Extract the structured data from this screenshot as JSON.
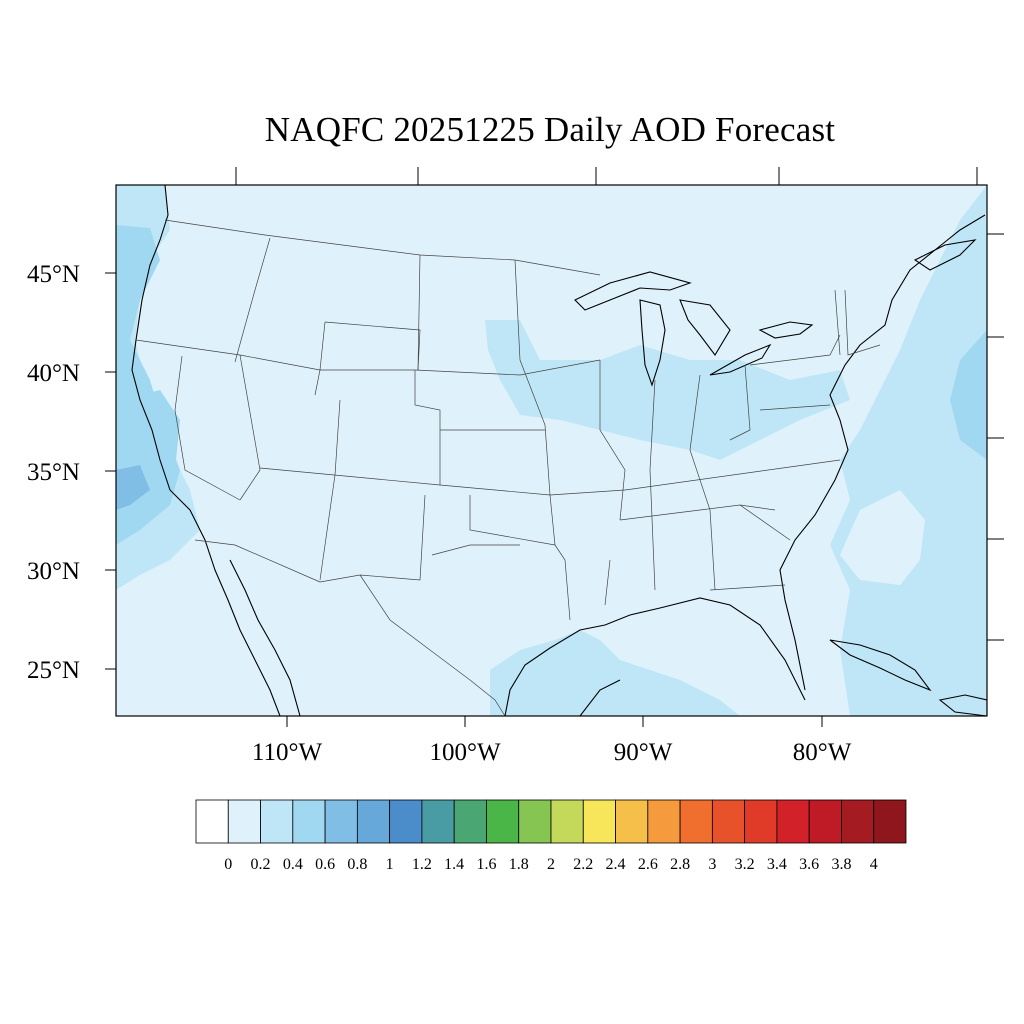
{
  "title": "NAQFC 20251225 Daily AOD Forecast",
  "map": {
    "background_color": "#dff2fb",
    "lat_labels": [
      "45°N",
      "40°N",
      "35°N",
      "30°N",
      "25°N"
    ],
    "lon_labels": [
      "110°W",
      "100°W",
      "90°W",
      "80°W"
    ]
  },
  "colorbar": {
    "levels": [
      "0",
      "0.2",
      "0.4",
      "0.6",
      "0.8",
      "1",
      "1.2",
      "1.4",
      "1.6",
      "1.8",
      "2",
      "2.2",
      "2.4",
      "2.6",
      "2.8",
      "3",
      "3.2",
      "3.4",
      "3.6",
      "3.8",
      "4"
    ],
    "colors": [
      "#ffffff",
      "#dff2fb",
      "#bfe6f7",
      "#a0d8f2",
      "#80bee6",
      "#66a8da",
      "#4b8ccb",
      "#4a9ca4",
      "#4aa774",
      "#4bb648",
      "#86c551",
      "#c4d85a",
      "#f7e65a",
      "#f6bf4a",
      "#f59a3d",
      "#f06f2f",
      "#e8522b",
      "#e03b28",
      "#d32129",
      "#be1b26",
      "#a41b22",
      "#8e161c"
    ]
  }
}
